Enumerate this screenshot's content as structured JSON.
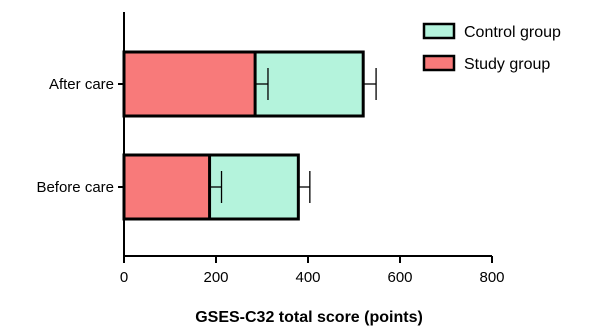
{
  "chart_data": {
    "type": "bar",
    "orientation": "horizontal",
    "stacked": true,
    "categories": [
      "Before care",
      "After care"
    ],
    "series": [
      {
        "name": "Study group",
        "color": "#f87a7a",
        "values": [
          186,
          285
        ],
        "errors": [
          26,
          28
        ]
      },
      {
        "name": "Control group",
        "color": "#b4f3dc",
        "values": [
          193,
          235
        ],
        "errors": [
          25,
          28
        ]
      }
    ],
    "xlabel": "GSES-C32 total score (points)",
    "xlim": [
      0,
      800
    ],
    "xticks": [
      0,
      200,
      400,
      600,
      800
    ],
    "legend": [
      "Control group",
      "Study group"
    ],
    "legend_position": "top-right",
    "grid": false
  }
}
